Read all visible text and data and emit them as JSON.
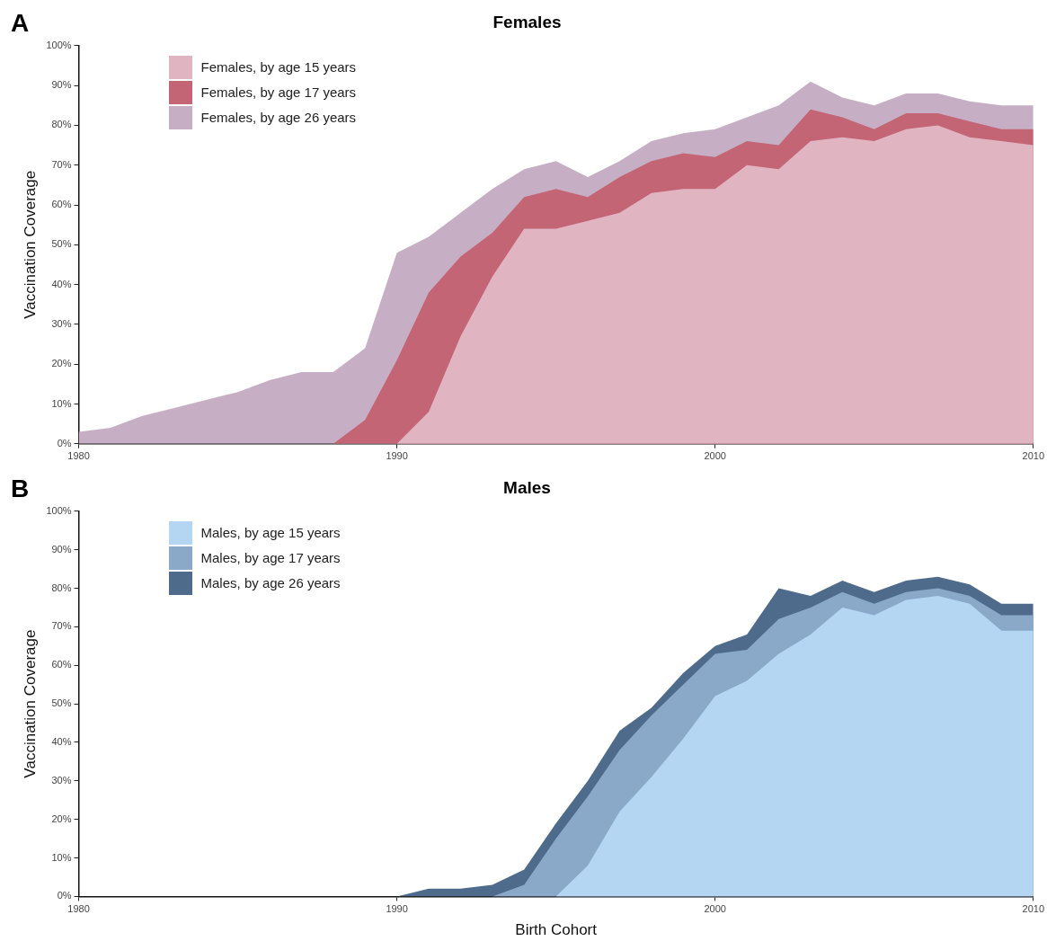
{
  "chart_data": [
    {
      "type": "area",
      "title": "Females",
      "ylabel": "Vaccination Coverage",
      "annotations": [
        "A"
      ],
      "legend": "top left",
      "grid": false,
      "xlim": [
        1980,
        2010
      ],
      "xticks": [
        1980,
        1990,
        2000,
        2010
      ],
      "ylim": [
        0,
        100
      ],
      "yticks": [
        {
          "value": 0,
          "label": "0%"
        },
        {
          "value": 10,
          "label": "10%"
        },
        {
          "value": 20,
          "label": "20%"
        },
        {
          "value": 30,
          "label": "30%"
        },
        {
          "value": 40,
          "label": "40%"
        },
        {
          "value": 50,
          "label": "50%"
        },
        {
          "value": 60,
          "label": "60%"
        },
        {
          "value": 70,
          "label": "70%"
        },
        {
          "value": 80,
          "label": "80%"
        },
        {
          "value": 90,
          "label": "90%"
        },
        {
          "value": 100,
          "label": "100%"
        }
      ],
      "series": [
        {
          "name": "Females, by age 15 years",
          "color": "#e0b4c1",
          "x": [
            1990,
            1991,
            1992,
            1993,
            1994,
            1995,
            1996,
            1997,
            1998,
            1999,
            2000,
            2001,
            2002,
            2003,
            2004,
            2005,
            2006,
            2007,
            2008,
            2009,
            2010
          ],
          "values": [
            0,
            8,
            27,
            42,
            54,
            54,
            56,
            58,
            63,
            64,
            64,
            70,
            69,
            76,
            77,
            76,
            79,
            80,
            77,
            76,
            75
          ]
        },
        {
          "name": "Females, by age 17 years",
          "color": "#c36574",
          "x": [
            1988,
            1989,
            1990,
            1991,
            1992,
            1993,
            1994,
            1995,
            1996,
            1997,
            1998,
            1999,
            2000,
            2001,
            2002,
            2003,
            2004,
            2005,
            2006,
            2007,
            2008,
            2009,
            2010
          ],
          "values": [
            0,
            6,
            21,
            38,
            47,
            53,
            62,
            64,
            62,
            67,
            71,
            73,
            72,
            76,
            75,
            84,
            82,
            79,
            83,
            83,
            81,
            79,
            79
          ]
        },
        {
          "name": "Females, by age 26 years",
          "color": "#c6afc5",
          "x": [
            1980,
            1981,
            1982,
            1983,
            1984,
            1985,
            1986,
            1987,
            1988,
            1989,
            1990,
            1991,
            1992,
            1993,
            1994,
            1995,
            1996,
            1997,
            1998,
            1999,
            2000,
            2001,
            2002,
            2003,
            2004,
            2005,
            2006,
            2007,
            2008,
            2009,
            2010
          ],
          "values": [
            3,
            4,
            7,
            9,
            11,
            13,
            16,
            18,
            18,
            24,
            48,
            52,
            58,
            64,
            69,
            71,
            67,
            71,
            76,
            78,
            79,
            82,
            85,
            91,
            87,
            85,
            88,
            88,
            86,
            85,
            85
          ]
        }
      ]
    },
    {
      "type": "area",
      "title": "Males",
      "xlabel": "Birth Cohort",
      "ylabel": "Vaccination Coverage",
      "annotations": [
        "B"
      ],
      "legend": "top left",
      "grid": false,
      "xlim": [
        1980,
        2010
      ],
      "xticks": [
        1980,
        1990,
        2000,
        2010
      ],
      "ylim": [
        0,
        100
      ],
      "yticks": [
        {
          "value": 0,
          "label": "0%"
        },
        {
          "value": 10,
          "label": "10%"
        },
        {
          "value": 20,
          "label": "20%"
        },
        {
          "value": 30,
          "label": "30%"
        },
        {
          "value": 40,
          "label": "40%"
        },
        {
          "value": 50,
          "label": "50%"
        },
        {
          "value": 60,
          "label": "60%"
        },
        {
          "value": 70,
          "label": "70%"
        },
        {
          "value": 80,
          "label": "80%"
        },
        {
          "value": 90,
          "label": "90%"
        },
        {
          "value": 100,
          "label": "100%"
        }
      ],
      "series": [
        {
          "name": "Males, by age 15 years",
          "color": "#b4d6f3",
          "x": [
            1995,
            1996,
            1997,
            1998,
            1999,
            2000,
            2001,
            2002,
            2003,
            2004,
            2005,
            2006,
            2007,
            2008,
            2009,
            2010
          ],
          "values": [
            0,
            8,
            22,
            31,
            41,
            52,
            56,
            63,
            68,
            75,
            73,
            77,
            78,
            76,
            69,
            69
          ]
        },
        {
          "name": "Males, by age 17 years",
          "color": "#8aa9c8",
          "x": [
            1993,
            1994,
            1995,
            1996,
            1997,
            1998,
            1999,
            2000,
            2001,
            2002,
            2003,
            2004,
            2005,
            2006,
            2007,
            2008,
            2009,
            2010
          ],
          "values": [
            0,
            3,
            15,
            26,
            38,
            47,
            55,
            63,
            64,
            72,
            75,
            79,
            76,
            79,
            80,
            78,
            73,
            73
          ]
        },
        {
          "name": "Males, by age 26 years",
          "color": "#4f6b8c",
          "x": [
            1990,
            1991,
            1992,
            1993,
            1994,
            1995,
            1996,
            1997,
            1998,
            1999,
            2000,
            2001,
            2002,
            2003,
            2004,
            2005,
            2006,
            2007,
            2008,
            2009,
            2010
          ],
          "values": [
            0,
            2,
            2,
            3,
            7,
            19,
            30,
            43,
            49,
            58,
            65,
            68,
            80,
            78,
            82,
            79,
            82,
            83,
            81,
            76,
            76
          ]
        }
      ]
    }
  ]
}
